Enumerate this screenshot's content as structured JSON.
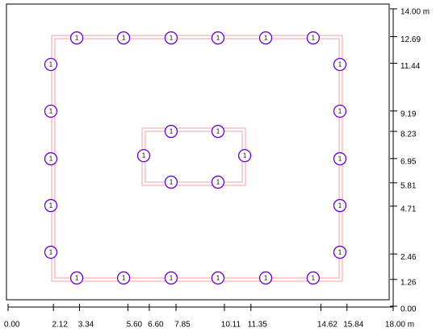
{
  "x_axis": {
    "ticks": [
      {
        "value": 0,
        "label": "0.00"
      },
      {
        "value": 2.12,
        "label": "2.12"
      },
      {
        "value": 3.34,
        "label": "3.34"
      },
      {
        "value": 5.6,
        "label": "5.60"
      },
      {
        "value": 6.6,
        "label": "6.60"
      },
      {
        "value": 7.85,
        "label": "7.85"
      },
      {
        "value": 10.11,
        "label": "10.11"
      },
      {
        "value": 11.35,
        "label": "11.35"
      },
      {
        "value": 14.62,
        "label": "14.62"
      },
      {
        "value": 15.84,
        "label": "15.84"
      },
      {
        "value": 18,
        "label": "18.00 m"
      }
    ]
  },
  "y_axis": {
    "ticks": [
      {
        "value": 0,
        "label": "0.00"
      },
      {
        "value": 1.26,
        "label": "1.26"
      },
      {
        "value": 2.46,
        "label": "2.46"
      },
      {
        "value": 4.71,
        "label": "4.71"
      },
      {
        "value": 5.81,
        "label": "5.81"
      },
      {
        "value": 6.95,
        "label": "6.95"
      },
      {
        "value": 8.23,
        "label": "8.23"
      },
      {
        "value": 9.19,
        "label": "9.19"
      },
      {
        "value": 11.44,
        "label": "11.44"
      },
      {
        "value": 12.69,
        "label": "12.69"
      },
      {
        "value": 14,
        "label": "14.00 m"
      }
    ]
  },
  "nodes": [
    {
      "label": "1",
      "x": 3.21,
      "y": 12.63
    },
    {
      "label": "1",
      "x": 5.4,
      "y": 12.63
    },
    {
      "label": "1",
      "x": 7.62,
      "y": 12.63
    },
    {
      "label": "1",
      "x": 9.81,
      "y": 12.63
    },
    {
      "label": "1",
      "x": 12.04,
      "y": 12.63
    },
    {
      "label": "1",
      "x": 14.26,
      "y": 12.63
    },
    {
      "label": "1",
      "x": 3.21,
      "y": 1.33
    },
    {
      "label": "1",
      "x": 5.4,
      "y": 1.33
    },
    {
      "label": "1",
      "x": 7.62,
      "y": 1.33
    },
    {
      "label": "1",
      "x": 9.81,
      "y": 1.33
    },
    {
      "label": "1",
      "x": 12.04,
      "y": 1.33
    },
    {
      "label": "1",
      "x": 14.26,
      "y": 1.33
    },
    {
      "label": "1",
      "x": 2.0,
      "y": 11.38
    },
    {
      "label": "1",
      "x": 2.0,
      "y": 9.18
    },
    {
      "label": "1",
      "x": 2.0,
      "y": 6.94
    },
    {
      "label": "1",
      "x": 2.0,
      "y": 4.74
    },
    {
      "label": "1",
      "x": 2.0,
      "y": 2.54
    },
    {
      "label": "1",
      "x": 15.51,
      "y": 11.38
    },
    {
      "label": "1",
      "x": 15.51,
      "y": 9.18
    },
    {
      "label": "1",
      "x": 15.51,
      "y": 6.94
    },
    {
      "label": "1",
      "x": 15.51,
      "y": 4.74
    },
    {
      "label": "1",
      "x": 15.51,
      "y": 2.54
    },
    {
      "label": "1",
      "x": 7.62,
      "y": 8.23
    },
    {
      "label": "1",
      "x": 9.81,
      "y": 8.23
    },
    {
      "label": "1",
      "x": 7.62,
      "y": 5.84
    },
    {
      "label": "1",
      "x": 9.81,
      "y": 5.84
    },
    {
      "label": "1",
      "x": 6.34,
      "y": 7.09
    },
    {
      "label": "1",
      "x": 11.06,
      "y": 7.09
    }
  ]
}
